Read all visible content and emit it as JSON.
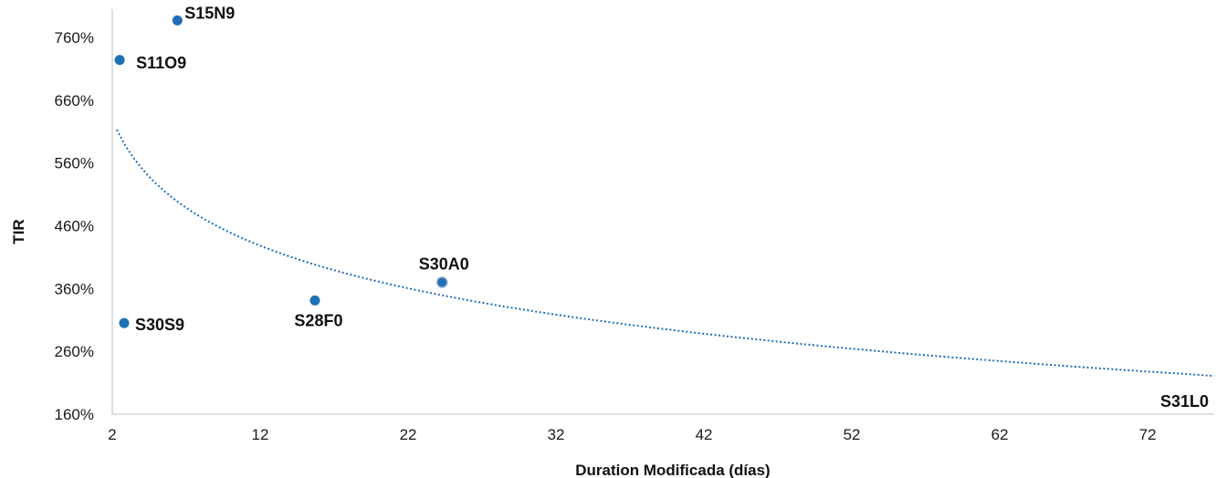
{
  "chart_data": {
    "type": "scatter",
    "xlabel": "Duration Modificada (días)",
    "ylabel": "TIR",
    "xlim": [
      2,
      76.5
    ],
    "ylim": [
      160,
      805
    ],
    "x_ticks": [
      2,
      12,
      22,
      32,
      42,
      52,
      62,
      72
    ],
    "y_ticks": [
      160,
      260,
      360,
      460,
      560,
      660,
      760
    ],
    "y_tick_labels": [
      "160%",
      "260%",
      "360%",
      "460%",
      "560%",
      "660%",
      "760%"
    ],
    "x_tick_labels": [
      "2",
      "12",
      "22",
      "32",
      "42",
      "52",
      "62",
      "72"
    ],
    "grid": false,
    "point_color": "#1f6fb5",
    "trend_color": "#1f6fb5",
    "points": [
      {
        "label": "S15N9",
        "x": 6.4,
        "y": 787
      },
      {
        "label": "S11O9",
        "x": 2.5,
        "y": 724
      },
      {
        "label": "S30S9",
        "x": 2.8,
        "y": 305
      },
      {
        "label": "S28F0",
        "x": 15.7,
        "y": 341
      },
      {
        "label": "S30A0",
        "x": 24.3,
        "y": 370
      },
      {
        "label": "S31L0",
        "x": 76.5,
        "y": 160
      }
    ],
    "trendline": {
      "type": "logarithmic",
      "x_start": 2.3,
      "x_end": 76.5,
      "y_at_start": 613,
      "y_at_end": 221
    }
  }
}
